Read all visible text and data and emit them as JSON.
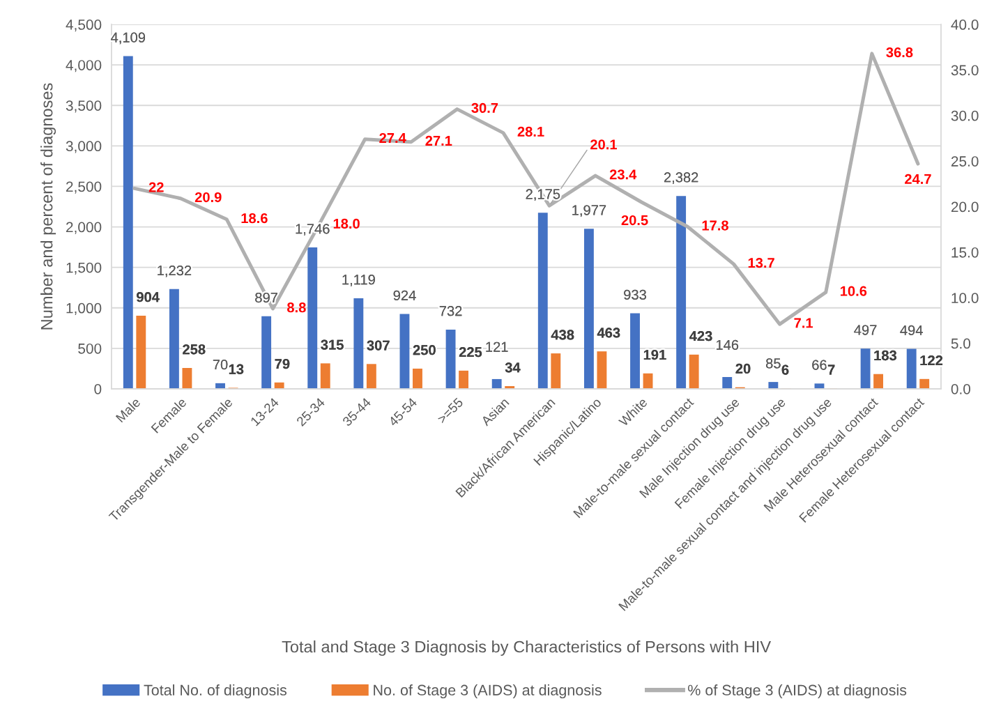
{
  "chart_data": {
    "type": "bar",
    "title": "Total and Stage 3 Diagnosis by Characteristics of Persons with HIV",
    "ylabel": "Number and percent of diagnoses",
    "categories": [
      "Male",
      "Female",
      "Transgender-Male to Female",
      "13-24",
      "25-34",
      "35-44",
      "45-54",
      ">=55",
      "Asian",
      "Black/African American",
      "Hispanic/Latino",
      "White",
      "Male-to-male sexual contact",
      "Male Injection drug use",
      "Female Injection drug use",
      "Male-to-male sexual contact and injection drug use",
      "Male Heterosexual contact",
      "Female Heterosexual contact"
    ],
    "series": [
      {
        "name": "Total No. of diagnosis",
        "color": "#4472c4",
        "values": [
          4109,
          1232,
          70,
          897,
          1746,
          1119,
          924,
          732,
          121,
          2175,
          1977,
          933,
          2382,
          146,
          85,
          66,
          497,
          494
        ],
        "value_labels": [
          "4,109",
          "1,232",
          "70",
          "897",
          "1,746",
          "1,119",
          "924",
          "732",
          "121",
          "2,175",
          "1,977",
          "933",
          "2,382",
          "146",
          "85",
          "66",
          "497",
          "494"
        ]
      },
      {
        "name": "No. of Stage 3 (AIDS) at diagnosis",
        "color": "#ed7d31",
        "values": [
          904,
          258,
          13,
          79,
          315,
          307,
          250,
          225,
          34,
          438,
          463,
          191,
          423,
          20,
          6,
          7,
          183,
          122
        ],
        "value_labels": [
          "904",
          "258",
          "13",
          "79",
          "315",
          "307",
          "250",
          "225",
          "34",
          "438",
          "463",
          "191",
          "423",
          "20",
          "6",
          "7",
          "183",
          "122"
        ]
      },
      {
        "name": "% of Stage 3 (AIDS) at diagnosis",
        "type": "line",
        "axis": "y2",
        "color": "#b0b0b0",
        "values": [
          22,
          20.9,
          18.6,
          8.8,
          18.0,
          27.4,
          27.1,
          30.7,
          28.1,
          20.1,
          23.4,
          20.5,
          17.8,
          13.7,
          7.1,
          10.6,
          36.8,
          24.7
        ],
        "value_labels": [
          "22",
          "20.9",
          "18.6",
          "8.8",
          "18.0",
          "27.4",
          "27.1",
          "30.7",
          "28.1",
          "20.1",
          "23.4",
          "20.5",
          "17.8",
          "13.7",
          "7.1",
          "10.6",
          "36.8",
          "24.7"
        ]
      }
    ],
    "ylim": [
      0,
      4500
    ],
    "yticks": [
      0,
      500,
      {
        "value": 1000,
        "label": "1,000"
      },
      {
        "value": 1500,
        "label": "1,500"
      },
      {
        "value": 2000,
        "label": "2,000"
      },
      {
        "value": 2500,
        "label": "2,500"
      },
      {
        "value": 3000,
        "label": "3,000"
      },
      {
        "value": 3500,
        "label": "3,500"
      },
      {
        "value": 4000,
        "label": "4,000"
      },
      {
        "value": 4500,
        "label": "4,500"
      }
    ],
    "y2lim": [
      0,
      40
    ],
    "y2ticks": [
      {
        "value": 0,
        "label": "0.0"
      },
      {
        "value": 5,
        "label": "5.0"
      },
      {
        "value": 10,
        "label": "10.0"
      },
      {
        "value": 15,
        "label": "15.0"
      },
      {
        "value": 20,
        "label": "20.0"
      },
      {
        "value": 25,
        "label": "25.0"
      },
      {
        "value": 30,
        "label": "30.0"
      },
      {
        "value": 35,
        "label": "35.0"
      },
      {
        "value": 40,
        "label": "40.0"
      }
    ],
    "grid": "y",
    "legend": "bottom"
  }
}
